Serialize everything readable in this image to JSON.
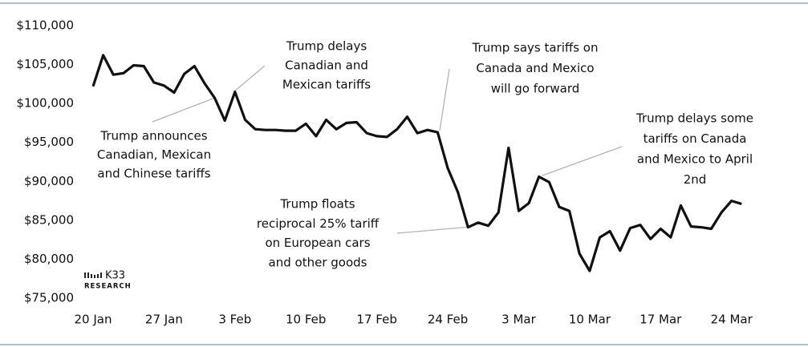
{
  "chart_data": {
    "type": "line",
    "x": [
      "20 Jan",
      "21 Jan",
      "22 Jan",
      "23 Jan",
      "24 Jan",
      "25 Jan",
      "26 Jan",
      "27 Jan",
      "28 Jan",
      "29 Jan",
      "30 Jan",
      "31 Jan",
      "1 Feb",
      "2 Feb",
      "3 Feb",
      "4 Feb",
      "5 Feb",
      "6 Feb",
      "7 Feb",
      "8 Feb",
      "9 Feb",
      "10 Feb",
      "11 Feb",
      "12 Feb",
      "13 Feb",
      "14 Feb",
      "15 Feb",
      "16 Feb",
      "17 Feb",
      "18 Feb",
      "19 Feb",
      "20 Feb",
      "21 Feb",
      "22 Feb",
      "23 Feb",
      "24 Feb",
      "25 Feb",
      "26 Feb",
      "27 Feb",
      "28 Feb",
      "1 Mar",
      "2 Mar",
      "3 Mar",
      "4 Mar",
      "5 Mar",
      "6 Mar",
      "7 Mar",
      "8 Mar",
      "9 Mar",
      "10 Mar",
      "11 Mar",
      "12 Mar",
      "13 Mar",
      "14 Mar",
      "15 Mar",
      "16 Mar",
      "17 Mar",
      "18 Mar",
      "19 Mar",
      "20 Mar",
      "21 Mar",
      "22 Mar",
      "23 Mar",
      "24 Mar",
      "25 Mar"
    ],
    "series": [
      {
        "color": "#111111",
        "values": [
          102200,
          106200,
          103700,
          103900,
          104900,
          104800,
          102700,
          102300,
          101400,
          103800,
          104800,
          102600,
          100700,
          97800,
          101500,
          97900,
          96700,
          96600,
          96600,
          96500,
          96500,
          97400,
          95800,
          97900,
          96700,
          97500,
          97600,
          96200,
          95800,
          95700,
          96700,
          98300,
          96200,
          96600,
          96300,
          91700,
          88600,
          84100,
          84700,
          84300,
          86000,
          94300,
          86200,
          87200,
          90600,
          89900,
          86700,
          86200,
          80700,
          78500,
          82800,
          83600,
          81100,
          84000,
          84400,
          82600,
          83900,
          82800,
          86900,
          84200,
          84100,
          83900,
          86000,
          87500,
          87100
        ]
      }
    ],
    "ylim": [
      75000,
      110000
    ],
    "yticks": [
      {
        "value": 75000,
        "label": "$75,000"
      },
      {
        "value": 80000,
        "label": "$80,000"
      },
      {
        "value": 85000,
        "label": "$85,000"
      },
      {
        "value": 90000,
        "label": "$90,000"
      },
      {
        "value": 95000,
        "label": "$95,000"
      },
      {
        "value": 100000,
        "label": "$100,000"
      },
      {
        "value": 105000,
        "label": "$105,000"
      },
      {
        "value": 110000,
        "label": "$110,000"
      }
    ],
    "xticks": [
      "20 Jan",
      "27 Jan",
      "3 Feb",
      "10 Feb",
      "17 Feb",
      "24 Feb",
      "3 Mar",
      "10 Mar",
      "17 Mar",
      "24 Mar"
    ],
    "annotations": [
      [
        "Trump delays",
        "Canadian and",
        "Mexican tariffs"
      ],
      [
        "Trump announces",
        "Canadian, Mexican",
        "and Chinese tariffs"
      ],
      [
        "Trump says tariffs on",
        "Canada and Mexico",
        "will go forward"
      ],
      [
        "Trump delays some",
        "tariffs on Canada",
        "and Mexico to April",
        "2nd"
      ],
      [
        "Trump floats",
        "reciprocal 25% tariff",
        "on European cars",
        "and other goods"
      ]
    ],
    "logo": [
      "K33",
      "RESEARCH"
    ]
  }
}
